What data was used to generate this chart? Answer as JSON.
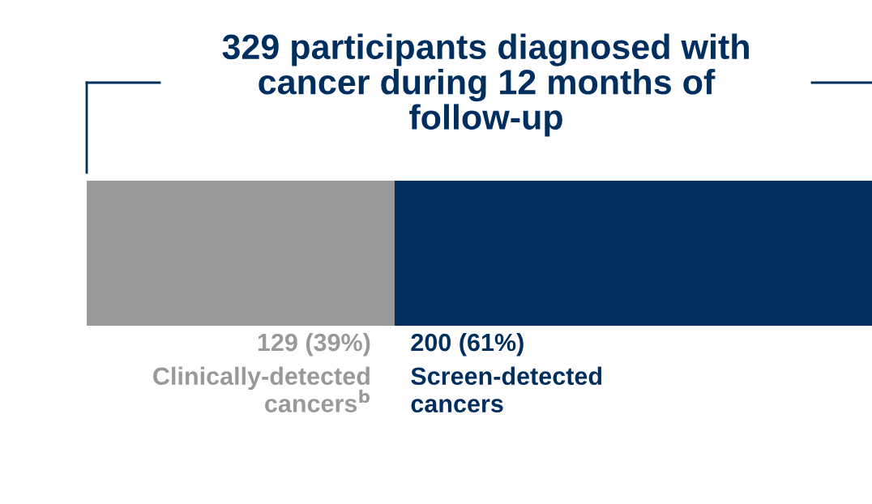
{
  "chart_data": {
    "type": "bar",
    "orientation": "horizontal",
    "stacked": true,
    "title": "329 participants diagnosed with cancer during 12 months of follow-up",
    "categories": [
      null
    ],
    "series": [
      {
        "name": "Clinically-detected cancers$^{b}$",
        "color": "#999999",
        "values": [
          129
        ],
        "value_labels": [
          "129 (39%)"
        ]
      },
      {
        "name": "Screen-detected cancers",
        "color": "#002f5f",
        "values": [
          200
        ],
        "value_labels": [
          "200 (61%)"
        ]
      }
    ],
    "legend": false
  }
}
